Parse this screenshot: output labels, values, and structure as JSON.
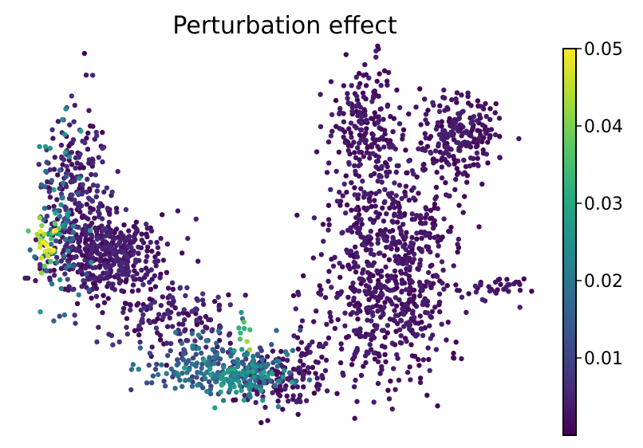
{
  "chart_data": {
    "type": "scatter",
    "title": "Perturbation effect",
    "xlabel": "",
    "ylabel": "",
    "xlim": [
      0,
      100
    ],
    "ylim": [
      0,
      100
    ],
    "axes_visible": false,
    "grid": false,
    "colormap": "viridis",
    "colormap_stops": [
      "#440154",
      "#472c7a",
      "#3b518b",
      "#2c718e",
      "#21908d",
      "#27ad81",
      "#5cc863",
      "#aadc32",
      "#fde725"
    ],
    "colorbar": {
      "min": 0,
      "max": 0.05,
      "ticks": [
        0.01,
        0.02,
        0.03,
        0.04,
        0.05
      ],
      "tick_labels": [
        "0.01",
        "0.02",
        "0.03",
        "0.04",
        "0.05"
      ]
    },
    "clusters": [
      {
        "cx": 9,
        "cy": 67,
        "sx": 3.5,
        "sy": 12,
        "n": 190,
        "v": [
          0.0,
          0.008
        ]
      },
      {
        "cx": 6,
        "cy": 55,
        "sx": 2.2,
        "sy": 12,
        "n": 80,
        "v": [
          0.01,
          0.03
        ]
      },
      {
        "cx": 3,
        "cy": 49,
        "sx": 1.2,
        "sy": 4,
        "n": 30,
        "v": [
          0.035,
          0.05
        ]
      },
      {
        "cx": 14,
        "cy": 46,
        "sx": 6,
        "sy": 6,
        "n": 470,
        "v": [
          0.0,
          0.006
        ]
      },
      {
        "cx": 28,
        "cy": 28,
        "sx": 7,
        "sy": 5,
        "n": 150,
        "v": [
          0.0,
          0.008
        ]
      },
      {
        "cx": 36,
        "cy": 15,
        "sx": 7,
        "sy": 4,
        "n": 170,
        "v": [
          0.008,
          0.022
        ]
      },
      {
        "cx": 42,
        "cy": 11,
        "sx": 5,
        "sy": 3,
        "n": 110,
        "v": [
          0.015,
          0.03
        ]
      },
      {
        "cx": 42,
        "cy": 23,
        "sx": 0.6,
        "sy": 5,
        "n": 12,
        "v": [
          0.025,
          0.045
        ]
      },
      {
        "cx": 50,
        "cy": 11,
        "sx": 5,
        "sy": 4,
        "n": 140,
        "v": [
          0.0,
          0.005
        ]
      },
      {
        "cx": 67,
        "cy": 28,
        "sx": 7,
        "sy": 10,
        "n": 230,
        "v": [
          0.0,
          0.005
        ]
      },
      {
        "cx": 75,
        "cy": 45,
        "sx": 5,
        "sy": 16,
        "n": 360,
        "v": [
          0.0,
          0.005
        ]
      },
      {
        "cx": 66,
        "cy": 52,
        "sx": 4,
        "sy": 12,
        "n": 160,
        "v": [
          0.0,
          0.005
        ]
      },
      {
        "cx": 66,
        "cy": 82,
        "sx": 3,
        "sy": 9,
        "n": 180,
        "v": [
          0.0,
          0.005
        ]
      },
      {
        "cx": 85,
        "cy": 78,
        "sx": 4,
        "sy": 6,
        "n": 220,
        "v": [
          0.0,
          0.005
        ]
      },
      {
        "cx": 93,
        "cy": 36,
        "sx": 3.5,
        "sy": 2,
        "n": 40,
        "v": [
          0.0,
          0.005
        ]
      }
    ]
  }
}
